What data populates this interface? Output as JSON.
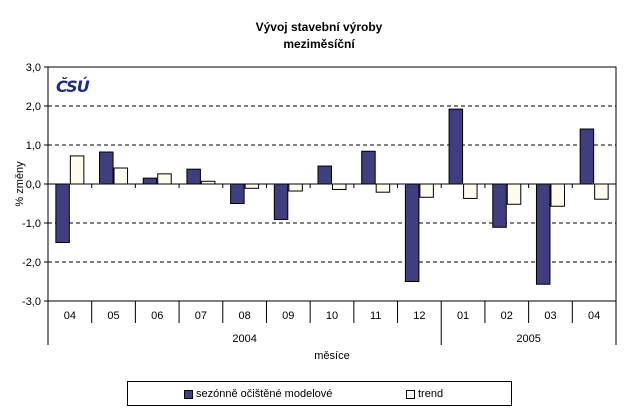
{
  "chart_data": {
    "type": "bar",
    "title": "Vývoj stavební výroby",
    "subtitle": "meziměsíční",
    "xlabel": "měsíce",
    "ylabel": "% změny",
    "ylim": [
      -3.0,
      3.0
    ],
    "yticks": [
      "3,0",
      "2,0",
      "1,0",
      "0,0",
      "-1,0",
      "-2,0",
      "-3,0"
    ],
    "ytick_values": [
      3,
      2,
      1,
      0,
      -1,
      -2,
      -3
    ],
    "grid": true,
    "categories": [
      "04",
      "05",
      "06",
      "07",
      "08",
      "09",
      "10",
      "11",
      "12",
      "01",
      "02",
      "03",
      "04"
    ],
    "groups": [
      {
        "label": "2004",
        "count": 9
      },
      {
        "label": "2005",
        "count": 4
      }
    ],
    "series": [
      {
        "name": "sezónně očištěné modelové",
        "color": "#3f3f7f",
        "values": [
          -1.5,
          0.82,
          0.15,
          0.38,
          -0.5,
          -0.91,
          0.46,
          0.84,
          -2.5,
          1.92,
          -1.11,
          -2.57,
          1.41
        ]
      },
      {
        "name": "trend",
        "color": "#fffbee",
        "values": [
          0.72,
          0.41,
          0.26,
          0.07,
          -0.11,
          -0.18,
          -0.14,
          -0.21,
          -0.34,
          -0.37,
          -0.52,
          -0.57,
          -0.39
        ]
      }
    ],
    "legend_position": "bottom"
  },
  "logo": "ČSÚ"
}
